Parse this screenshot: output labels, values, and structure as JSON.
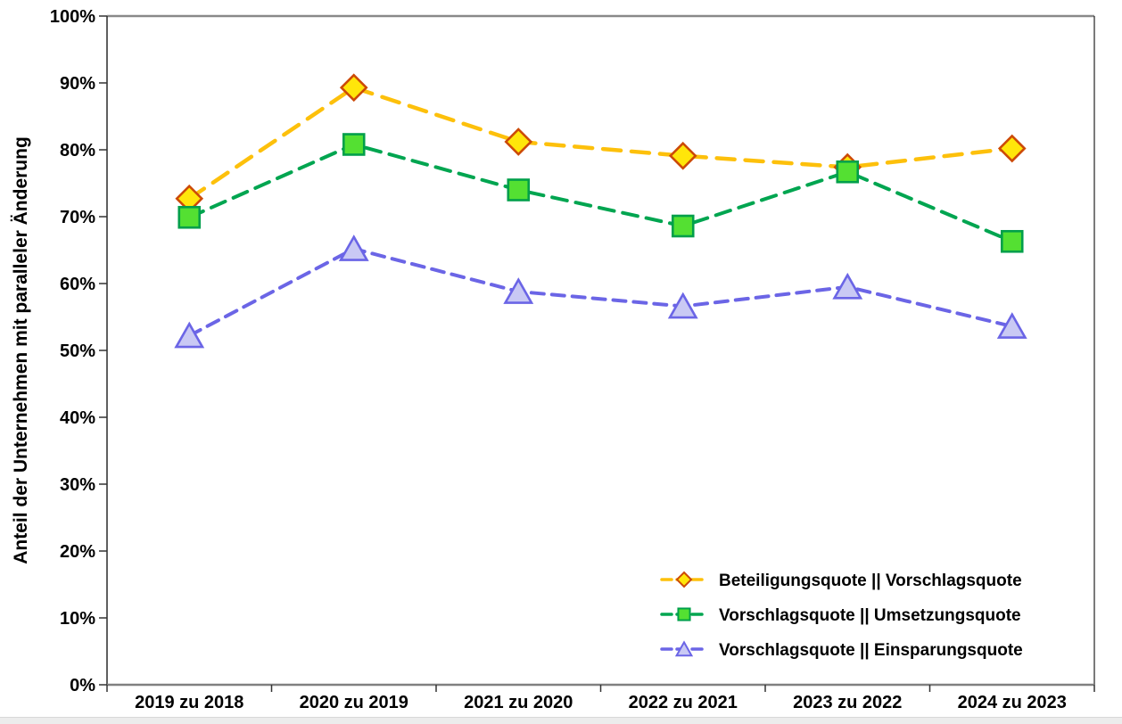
{
  "chart_data": {
    "type": "line",
    "title": "",
    "xlabel": "",
    "ylabel": "Anteil der Unternehmen mit paralleler Änderung",
    "categories": [
      "2019 zu 2018",
      "2020 zu 2019",
      "2021 zu 2020",
      "2022 zu 2021",
      "2023 zu 2022",
      "2024 zu 2023"
    ],
    "ylim": [
      0,
      100
    ],
    "y_tick_values": [
      0,
      10,
      20,
      30,
      40,
      50,
      60,
      70,
      80,
      90,
      100
    ],
    "y_tick_labels": [
      "0%",
      "10%",
      "20%",
      "30%",
      "40%",
      "50%",
      "60%",
      "70%",
      "80%",
      "90%",
      "100%"
    ],
    "grid": false,
    "legend_position": "inside-bottom-right",
    "series": [
      {
        "name": "Beteiligungsquote || Vorschlagsquote",
        "marker": "diamond",
        "line_color": "#fdc00b",
        "marker_fill": "#ffe60a",
        "marker_stroke": "#cc4a08",
        "dash": "20 12",
        "line_width": 4.5,
        "values": [
          72.7,
          89.3,
          81.2,
          79.1,
          77.4,
          80.2
        ]
      },
      {
        "name": "Vorschlagsquote || Umsetzungsquote",
        "marker": "square",
        "line_color": "#00a550",
        "marker_fill": "#54e032",
        "marker_stroke": "#009f4a",
        "dash": "17 10",
        "line_width": 4,
        "values": [
          69.9,
          80.8,
          74.0,
          68.6,
          76.7,
          66.3
        ]
      },
      {
        "name": "Vorschlagsquote || Einsparungsquote",
        "marker": "triangle",
        "line_color": "#6b65e6",
        "marker_fill": "#c9c9f4",
        "marker_stroke": "#6b65e6",
        "dash": "14 9",
        "line_width": 4,
        "values": [
          52.2,
          65.2,
          58.8,
          56.6,
          59.5,
          53.6
        ]
      }
    ],
    "axis_colors": {
      "top_border": "#898989",
      "right_border": "#2a2a2a",
      "left_axis": "#2a2a2a",
      "bottom_axis": "#808080",
      "tick": "#333333",
      "text": "#000000"
    }
  }
}
